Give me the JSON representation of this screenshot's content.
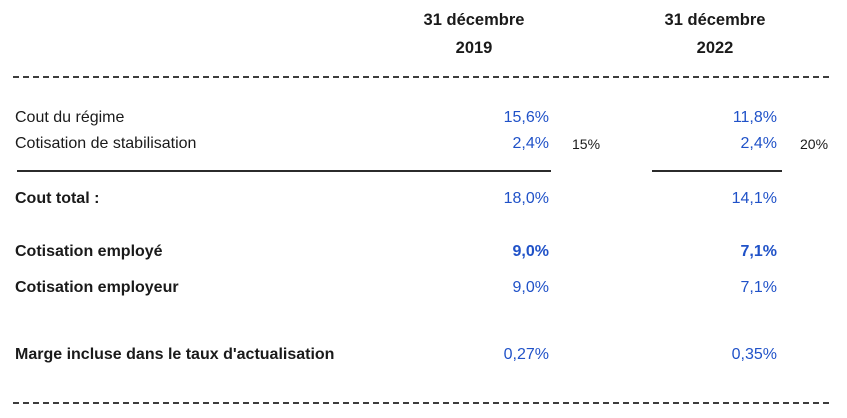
{
  "table": {
    "column_headers": [
      {
        "line1": "31 décembre",
        "line2": "2019"
      },
      {
        "line1": "31 décembre",
        "line2": "2022"
      }
    ],
    "rows": [
      {
        "label": "Cout du régime",
        "value_2019": "15,6%",
        "value_2022": "11,8%"
      },
      {
        "label": "Cotisation de stabilisation",
        "value_2019": "2,4%",
        "note_2019": "15%",
        "value_2022": "2,4%",
        "note_2022": "20%"
      },
      {
        "label": "Cout total :",
        "value_2019": "18,0%",
        "value_2022": "14,1%"
      },
      {
        "label": "Cotisation employé",
        "value_2019": "9,0%",
        "value_2022": "7,1%"
      },
      {
        "label": "Cotisation employeur",
        "value_2019": "9,0%",
        "value_2022": "7,1%"
      },
      {
        "label": "Marge incluse dans le taux d'actualisation",
        "value_2019": "0,27%",
        "value_2022": "0,35%"
      }
    ]
  },
  "colors": {
    "value_blue": "#2052C8",
    "text_black": "#1a1a1a",
    "rule_dark": "#2b2b2b",
    "dash_gray": "#3d3d3d",
    "background": "#ffffff"
  }
}
